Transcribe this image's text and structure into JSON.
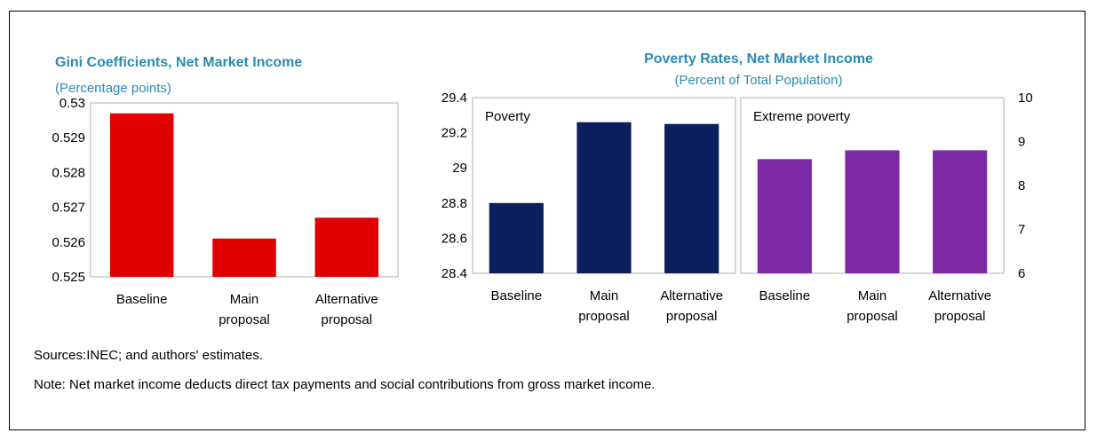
{
  "colors": {
    "gini_bar": "#e00000",
    "poverty_bar": "#0b1f5e",
    "extreme_bar": "#7b2aa3",
    "title": "#2a8bb4"
  },
  "chart_data": [
    {
      "type": "bar",
      "title": "Gini Coefficients, Net Market Income",
      "subtitle": "(Percentage points)",
      "categories": [
        [
          "Baseline"
        ],
        [
          "Main",
          "proposal"
        ],
        [
          "Alternative",
          "proposal"
        ]
      ],
      "values": [
        0.5297,
        0.5261,
        0.5267
      ],
      "ylim": [
        0.525,
        0.53
      ],
      "yticks": [
        "0.525",
        "0.526",
        "0.527",
        "0.528",
        "0.529",
        "0.53"
      ],
      "grid": false
    },
    {
      "type": "bar",
      "title": "Poverty Rates, Net Market Income",
      "subtitle": "(Percent of Total Population)",
      "panels": [
        {
          "label": "Poverty",
          "categories": [
            [
              "Baseline"
            ],
            [
              "Main",
              "proposal"
            ],
            [
              "Alternative",
              "proposal"
            ]
          ],
          "values": [
            28.8,
            29.26,
            29.25
          ],
          "ylim": [
            28.4,
            29.4
          ],
          "yticks": [
            "28.4",
            "28.6",
            "28.8",
            "29",
            "29.2",
            "29.4"
          ],
          "axis": "left"
        },
        {
          "label": "Extreme poverty",
          "categories": [
            [
              "Baseline"
            ],
            [
              "Main",
              "proposal"
            ],
            [
              "Alternative",
              "proposal"
            ]
          ],
          "values": [
            8.6,
            8.8,
            8.8
          ],
          "ylim": [
            6,
            10
          ],
          "yticks": [
            "6",
            "7",
            "8",
            "9",
            "10"
          ],
          "axis": "right"
        }
      ],
      "grid": false
    }
  ],
  "notes": {
    "sources": "Sources:INEC; and authors' estimates.",
    "note": "Note:  Net market income deducts direct tax payments and social contributions from gross market income."
  }
}
